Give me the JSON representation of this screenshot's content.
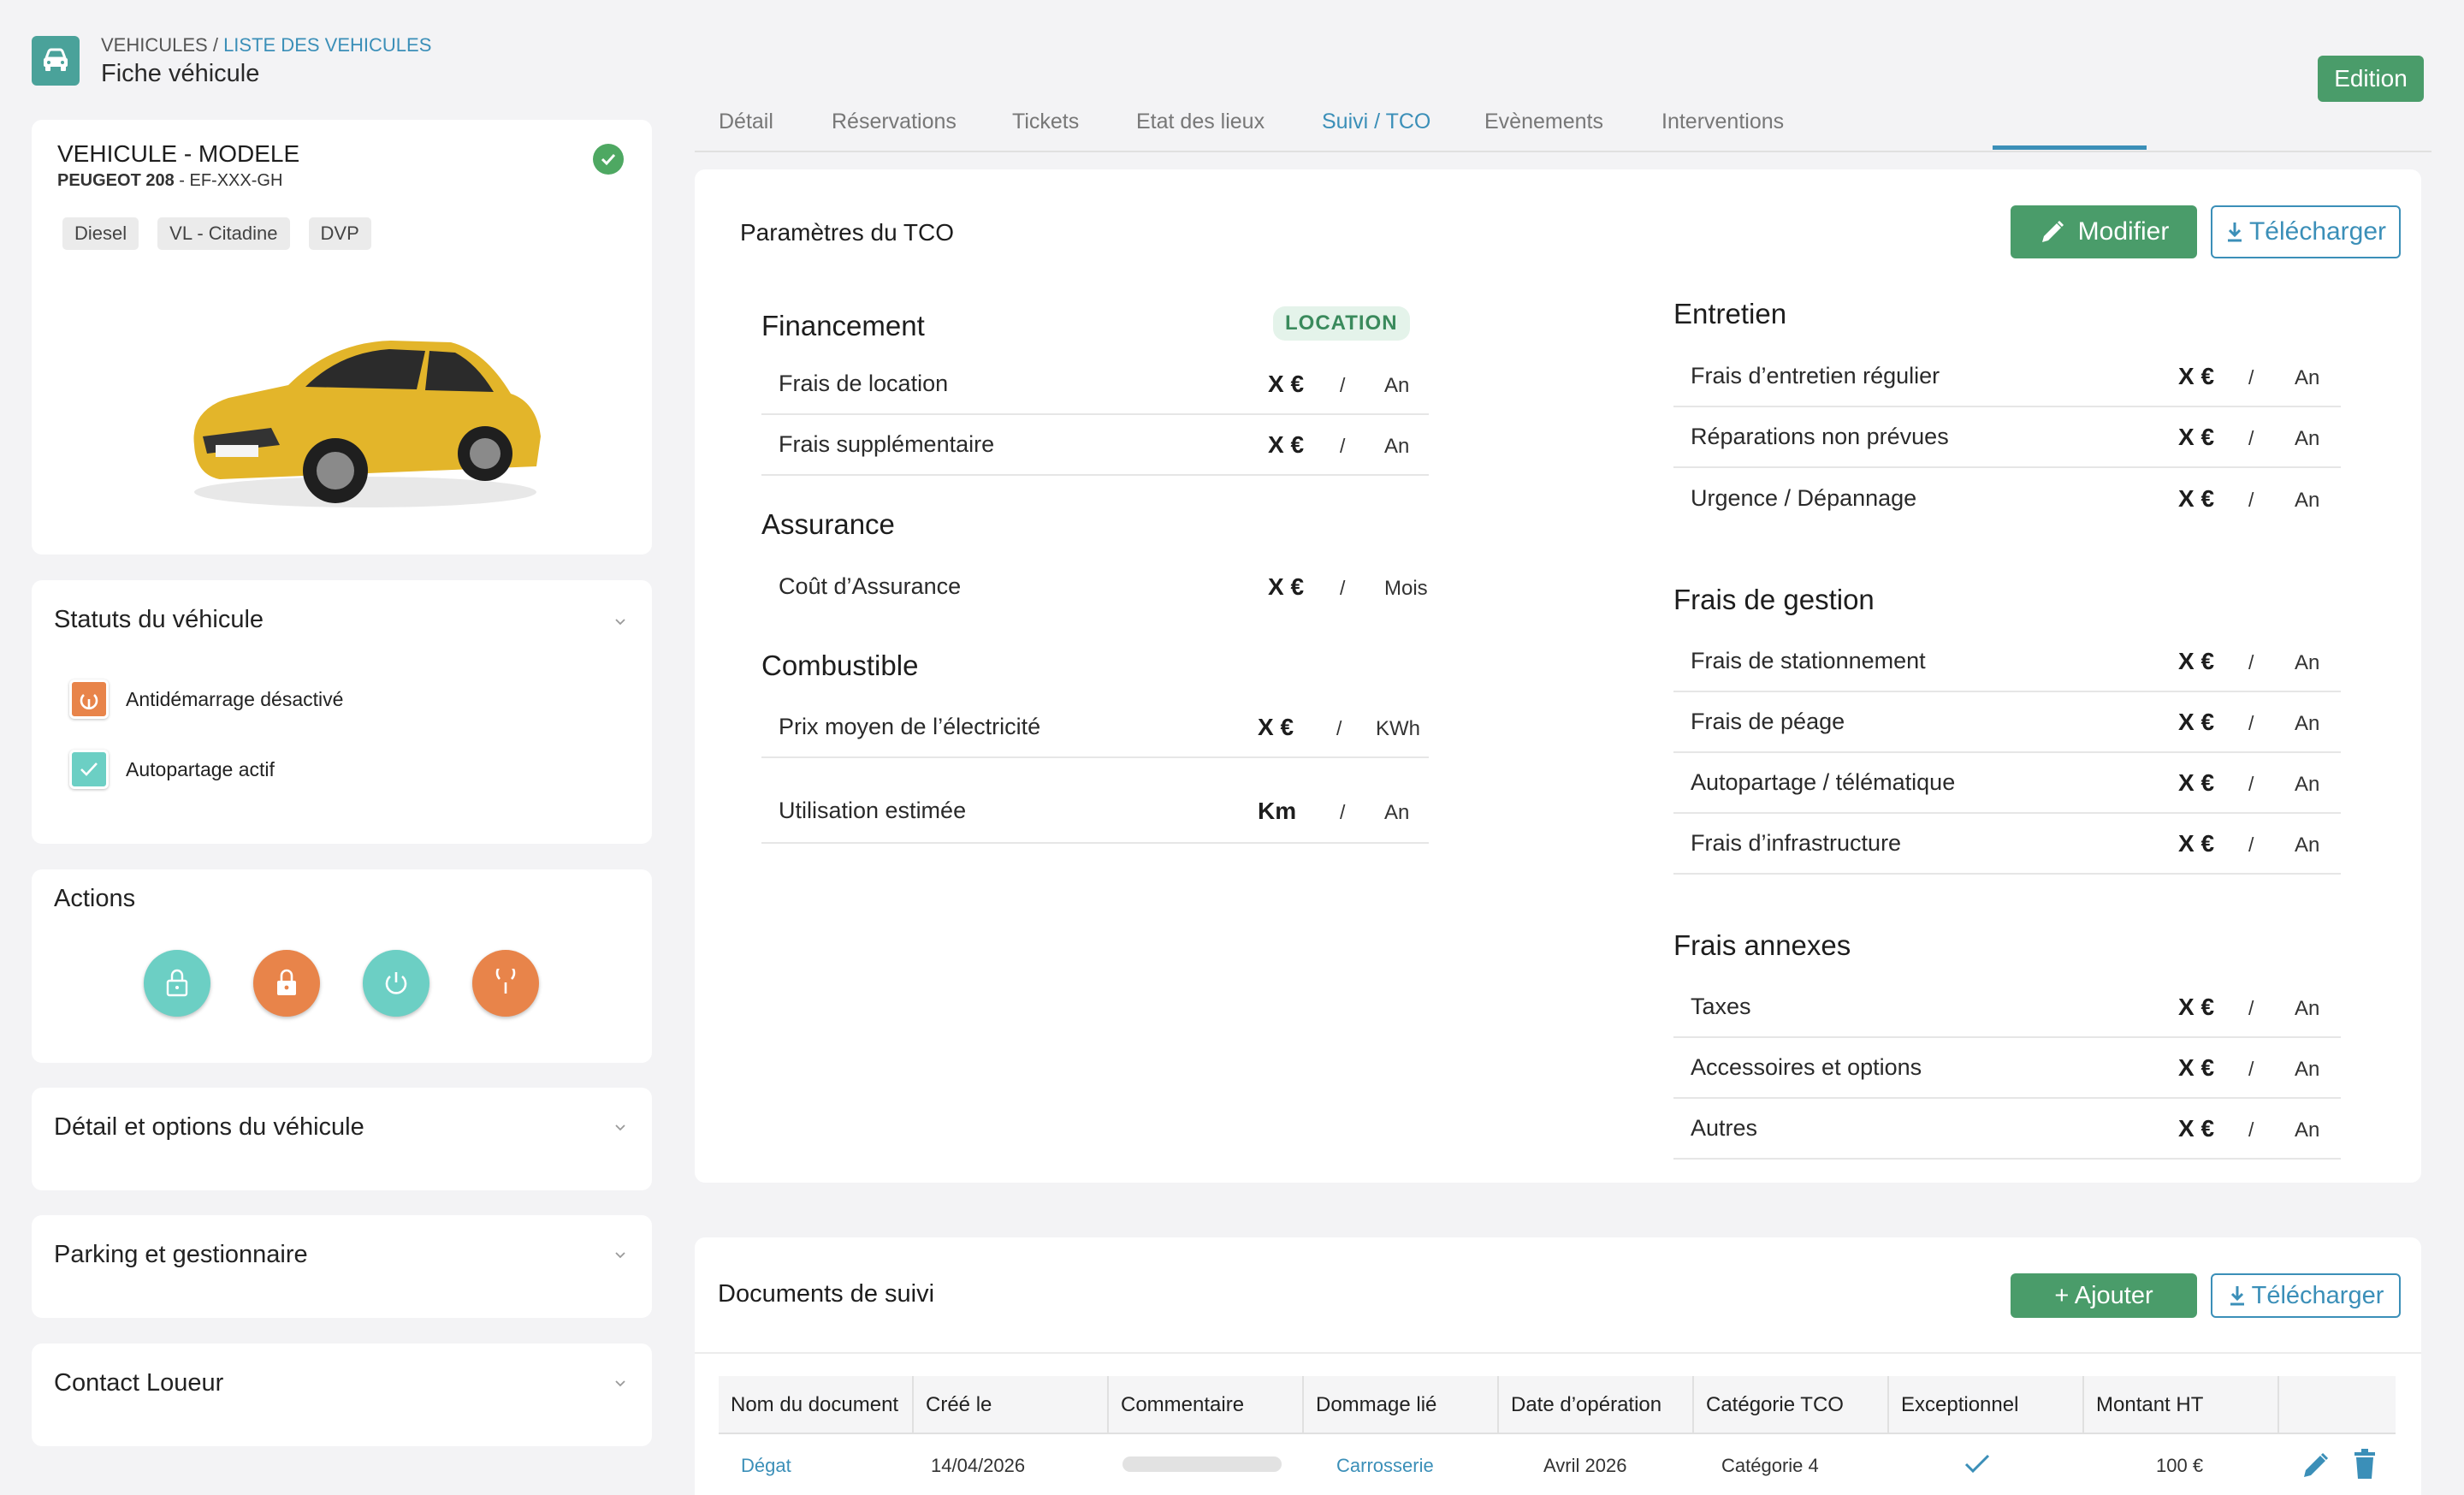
{
  "header": {
    "breadcrumb_root": "VEHICULES /",
    "breadcrumb_link": "LISTE DES VEHICULES",
    "page_title": "Fiche véhicule",
    "edition_label": "Edition"
  },
  "vehicle": {
    "title": "VEHICULE - MODELE",
    "model": "PEUGEOT 208",
    "plate": " - EF-XXX-GH",
    "tags": [
      "Diesel",
      "VL - Citadine",
      "DVP"
    ],
    "car_color": "#e3b52a"
  },
  "statuts": {
    "title": "Statuts du véhicule",
    "items": [
      {
        "label": "Antidémarrage désactivé",
        "icon": "power-icon",
        "color": "#e8844a"
      },
      {
        "label": "Autopartage actif",
        "icon": "check-icon",
        "color": "#6ccfc4"
      }
    ]
  },
  "actions": {
    "title": "Actions",
    "buttons": [
      {
        "icon": "unlock-icon",
        "color": "#6ccfc4"
      },
      {
        "icon": "lock-icon",
        "color": "#e8844a"
      },
      {
        "icon": "power-on-icon",
        "color": "#6ccfc4"
      },
      {
        "icon": "power-off-icon",
        "color": "#e8844a"
      }
    ]
  },
  "sections": {
    "detail": "Détail et options du véhicule",
    "parking": "Parking et gestionnaire",
    "contact": "Contact Loueur"
  },
  "tabs": [
    "Détail",
    "Réservations",
    "Tickets",
    "Etat des lieux",
    "Suivi / TCO",
    "Evènements",
    "Interventions"
  ],
  "active_tab": "Suivi / TCO",
  "tco": {
    "title": "Paramètres du TCO",
    "modify_label": "Modifier",
    "download_label": "Télécharger",
    "left_groups": {
      "financement": {
        "title": "Financement",
        "badge": "LOCATION",
        "rows": [
          {
            "label": "Frais de location",
            "value": "X €",
            "sep": "/",
            "unit": "An"
          },
          {
            "label": "Frais supplémentaire",
            "value": "X €",
            "sep": "/",
            "unit": "An"
          }
        ]
      },
      "assurance": {
        "title": "Assurance",
        "rows": [
          {
            "label": "Coût d’Assurance",
            "value": "X €",
            "sep": "/",
            "unit": "Mois"
          }
        ]
      },
      "combustible": {
        "title": "Combustible",
        "rows": [
          {
            "label": "Prix moyen de l’électricité",
            "value": "X €",
            "sep": "/",
            "unit": "KWh"
          },
          {
            "label": "Utilisation estimée",
            "value": "Km",
            "sep": "/",
            "unit": "An"
          }
        ]
      }
    },
    "right_groups": {
      "entretien": {
        "title": "Entretien",
        "rows": [
          {
            "label": "Frais d’entretien régulier",
            "value": "X €",
            "sep": "/",
            "unit": "An"
          },
          {
            "label": "Réparations non prévues",
            "value": "X €",
            "sep": "/",
            "unit": "An"
          },
          {
            "label": "Urgence / Dépannage",
            "value": "X €",
            "sep": "/",
            "unit": "An"
          }
        ]
      },
      "gestion": {
        "title": "Frais de gestion",
        "rows": [
          {
            "label": "Frais de stationnement",
            "value": "X €",
            "sep": "/",
            "unit": "An"
          },
          {
            "label": "Frais de péage",
            "value": "X €",
            "sep": "/",
            "unit": "An"
          },
          {
            "label": "Autopartage / télématique",
            "value": "X €",
            "sep": "/",
            "unit": "An"
          },
          {
            "label": "Frais d’infrastructure",
            "value": "X €",
            "sep": "/",
            "unit": "An"
          }
        ]
      },
      "annexes": {
        "title": "Frais annexes",
        "rows": [
          {
            "label": "Taxes",
            "value": "X €",
            "sep": "/",
            "unit": "An"
          },
          {
            "label": "Accessoires et options",
            "value": "X €",
            "sep": "/",
            "unit": "An"
          },
          {
            "label": "Autres",
            "value": "X €",
            "sep": "/",
            "unit": "An"
          }
        ]
      }
    }
  },
  "docs": {
    "title": "Documents de suivi",
    "add_label": "+ Ajouter",
    "download_label": "Télécharger",
    "columns": [
      "Nom du document",
      "Créé le",
      "Commentaire",
      "Dommage lié",
      "Date d’opération",
      "Catégorie TCO",
      "Exceptionnel",
      "Montant HT"
    ],
    "rows": [
      {
        "name": "Dégat",
        "created": "14/04/2026",
        "damage": "Carrosserie",
        "op_date": "Avril 2026",
        "category": "Catégorie 4",
        "amount": "100 €"
      }
    ]
  }
}
